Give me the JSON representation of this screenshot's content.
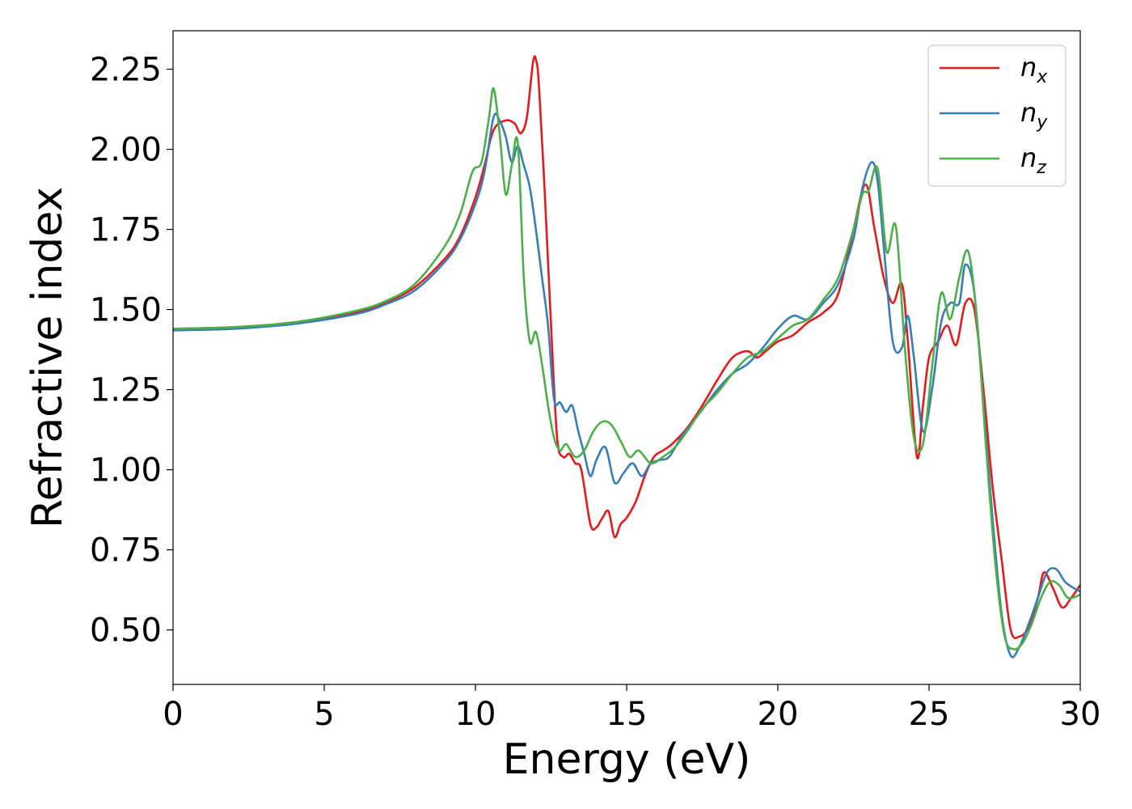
{
  "chart_data": {
    "type": "line",
    "title": "",
    "xlabel": "Energy (eV)",
    "ylabel": "Refractive index",
    "xlim": [
      0,
      30
    ],
    "ylim": [
      0.33,
      2.37
    ],
    "xticks": [
      0,
      5,
      10,
      15,
      20,
      25,
      30
    ],
    "xtick_labels": [
      "0",
      "5",
      "10",
      "15",
      "20",
      "25",
      "30"
    ],
    "yticks": [
      0.5,
      0.75,
      1.0,
      1.25,
      1.5,
      1.75,
      2.0,
      2.25
    ],
    "ytick_labels": [
      "0.50",
      "0.75",
      "1.00",
      "1.25",
      "1.50",
      "1.75",
      "2.00",
      "2.25"
    ],
    "grid": false,
    "legend_position": "top-right",
    "series": [
      {
        "name": "n_x",
        "label_main": "n",
        "label_sub": "x",
        "color": "#e41a1c",
        "x": [
          0,
          2,
          4,
          6,
          7,
          8,
          9,
          9.5,
          10,
          10.3,
          10.6,
          11.0,
          11.3,
          11.5,
          11.7,
          11.9,
          12.0,
          12.1,
          12.3,
          12.5,
          12.7,
          12.9,
          13.1,
          13.3,
          13.5,
          13.8,
          14.0,
          14.2,
          14.4,
          14.6,
          14.8,
          15.0,
          15.3,
          15.6,
          15.9,
          16.2,
          16.5,
          17.0,
          17.5,
          18.0,
          18.5,
          19.0,
          19.3,
          19.6,
          20.0,
          20.5,
          21.0,
          21.5,
          22.0,
          22.5,
          22.9,
          23.2,
          23.5,
          23.8,
          24.1,
          24.3,
          24.6,
          24.8,
          25.0,
          25.3,
          25.6,
          25.9,
          26.2,
          26.5,
          26.8,
          27.1,
          27.4,
          27.7,
          28.0,
          28.3,
          28.6,
          28.8,
          29.1,
          29.4,
          29.7,
          30.0
        ],
        "y": [
          1.44,
          1.445,
          1.46,
          1.49,
          1.52,
          1.57,
          1.66,
          1.73,
          1.85,
          1.95,
          2.06,
          2.09,
          2.08,
          2.05,
          2.1,
          2.27,
          2.28,
          2.2,
          1.85,
          1.45,
          1.1,
          1.04,
          1.05,
          1.02,
          1.0,
          0.83,
          0.82,
          0.85,
          0.87,
          0.79,
          0.83,
          0.85,
          0.9,
          0.98,
          1.04,
          1.06,
          1.08,
          1.13,
          1.2,
          1.28,
          1.35,
          1.37,
          1.35,
          1.37,
          1.4,
          1.42,
          1.46,
          1.49,
          1.55,
          1.75,
          1.89,
          1.75,
          1.6,
          1.52,
          1.58,
          1.4,
          1.04,
          1.2,
          1.35,
          1.4,
          1.45,
          1.39,
          1.52,
          1.5,
          1.25,
          0.95,
          0.72,
          0.5,
          0.48,
          0.51,
          0.6,
          0.68,
          0.63,
          0.57,
          0.6,
          0.64
        ]
      },
      {
        "name": "n_y",
        "label_main": "n",
        "label_sub": "y",
        "color": "#377eb8",
        "x": [
          0,
          2,
          4,
          6,
          7,
          8,
          9,
          9.5,
          10,
          10.3,
          10.6,
          10.8,
          11.0,
          11.2,
          11.4,
          11.6,
          11.8,
          12.0,
          12.2,
          12.4,
          12.6,
          12.8,
          13.0,
          13.2,
          13.4,
          13.6,
          13.8,
          14.0,
          14.3,
          14.6,
          14.9,
          15.2,
          15.5,
          15.8,
          16.1,
          16.4,
          16.8,
          17.2,
          17.6,
          18.0,
          18.5,
          19.0,
          19.5,
          20.0,
          20.5,
          21.0,
          21.5,
          22.0,
          22.5,
          22.8,
          23.1,
          23.3,
          23.5,
          23.8,
          24.1,
          24.3,
          24.5,
          24.8,
          25.1,
          25.4,
          25.7,
          26.0,
          26.2,
          26.5,
          26.8,
          27.1,
          27.4,
          27.7,
          28.0,
          28.3,
          28.6,
          28.9,
          29.2,
          29.5,
          29.8,
          30.0
        ],
        "y": [
          1.435,
          1.44,
          1.455,
          1.485,
          1.515,
          1.56,
          1.65,
          1.72,
          1.83,
          1.93,
          2.1,
          2.09,
          2.04,
          1.96,
          2.01,
          1.95,
          1.88,
          1.75,
          1.6,
          1.45,
          1.22,
          1.21,
          1.18,
          1.2,
          1.12,
          1.05,
          0.98,
          1.03,
          1.07,
          0.96,
          0.99,
          1.02,
          0.98,
          1.02,
          1.03,
          1.04,
          1.1,
          1.15,
          1.2,
          1.25,
          1.3,
          1.33,
          1.38,
          1.44,
          1.48,
          1.47,
          1.52,
          1.58,
          1.72,
          1.88,
          1.96,
          1.9,
          1.7,
          1.4,
          1.38,
          1.48,
          1.35,
          1.12,
          1.25,
          1.46,
          1.52,
          1.52,
          1.64,
          1.55,
          1.2,
          0.85,
          0.55,
          0.42,
          0.45,
          0.52,
          0.6,
          0.68,
          0.69,
          0.65,
          0.63,
          0.62
        ]
      },
      {
        "name": "n_z",
        "label_main": "n",
        "label_sub": "z",
        "color": "#4daf4a",
        "x": [
          0,
          2,
          4,
          6,
          7,
          8,
          9,
          9.5,
          9.9,
          10.2,
          10.45,
          10.6,
          10.8,
          11.0,
          11.2,
          11.4,
          11.6,
          11.8,
          12.0,
          12.2,
          12.4,
          12.6,
          12.8,
          13.0,
          13.3,
          13.6,
          13.9,
          14.2,
          14.5,
          14.8,
          15.1,
          15.4,
          15.8,
          16.2,
          16.6,
          17.0,
          17.5,
          18.0,
          18.5,
          19.0,
          19.5,
          20.0,
          20.5,
          21.0,
          21.5,
          22.0,
          22.5,
          22.8,
          23.0,
          23.3,
          23.6,
          23.9,
          24.2,
          24.5,
          24.8,
          25.1,
          25.4,
          25.7,
          26.0,
          26.3,
          26.6,
          26.9,
          27.2,
          27.5,
          27.8,
          28.1,
          28.4,
          28.7,
          29.0,
          29.3,
          29.6,
          30.0
        ],
        "y": [
          1.44,
          1.445,
          1.46,
          1.495,
          1.525,
          1.58,
          1.7,
          1.8,
          1.93,
          1.96,
          2.1,
          2.19,
          2.05,
          1.86,
          1.95,
          2.02,
          1.6,
          1.4,
          1.43,
          1.33,
          1.2,
          1.1,
          1.06,
          1.08,
          1.04,
          1.06,
          1.12,
          1.15,
          1.14,
          1.09,
          1.04,
          1.06,
          1.02,
          1.04,
          1.07,
          1.12,
          1.19,
          1.24,
          1.3,
          1.35,
          1.37,
          1.41,
          1.45,
          1.47,
          1.53,
          1.6,
          1.75,
          1.86,
          1.87,
          1.94,
          1.68,
          1.76,
          1.38,
          1.1,
          1.08,
          1.32,
          1.55,
          1.47,
          1.6,
          1.68,
          1.45,
          1.05,
          0.7,
          0.48,
          0.44,
          0.46,
          0.52,
          0.6,
          0.65,
          0.64,
          0.6,
          0.61
        ]
      }
    ]
  }
}
